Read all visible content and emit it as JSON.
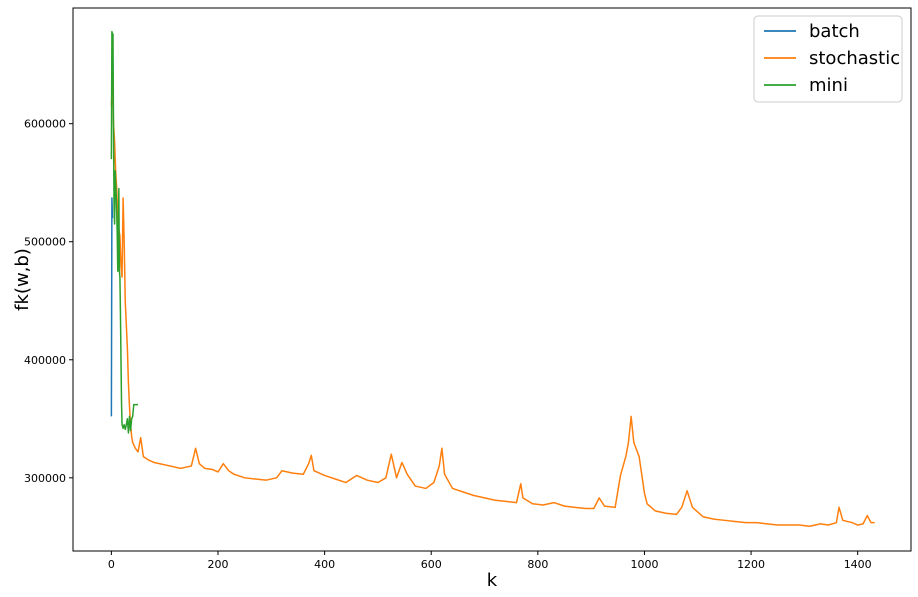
{
  "chart_data": {
    "type": "line",
    "title": "",
    "xlabel": "k",
    "ylabel": "fk(w,b)",
    "xlim": [
      -72,
      1500
    ],
    "ylim": [
      238000,
      698000
    ],
    "xticks": [
      0,
      200,
      400,
      600,
      800,
      1000,
      1200,
      1400
    ],
    "yticks": [
      300000,
      400000,
      500000,
      600000
    ],
    "xtick_labels": [
      "0",
      "200",
      "400",
      "600",
      "800",
      "1000",
      "1200",
      "1400"
    ],
    "ytick_labels": [
      "300000",
      "400000",
      "500000",
      "600000"
    ],
    "grid": false,
    "legend_position": "top-right",
    "series": [
      {
        "name": "batch",
        "color": "#1f77b4",
        "points": [
          [
            0,
            352000
          ],
          [
            1,
            537000
          ],
          [
            2,
            520000
          ]
        ]
      },
      {
        "name": "stochastic",
        "color": "#ff7f0e",
        "points": [
          [
            0,
            615000
          ],
          [
            2,
            638000
          ],
          [
            4,
            600000
          ],
          [
            6,
            585000
          ],
          [
            8,
            560000
          ],
          [
            10,
            545000
          ],
          [
            12,
            520000
          ],
          [
            14,
            510000
          ],
          [
            16,
            505000
          ],
          [
            18,
            480000
          ],
          [
            20,
            470000
          ],
          [
            22,
            537000
          ],
          [
            24,
            500000
          ],
          [
            26,
            450000
          ],
          [
            28,
            430000
          ],
          [
            30,
            410000
          ],
          [
            32,
            380000
          ],
          [
            34,
            360000
          ],
          [
            36,
            345000
          ],
          [
            38,
            335000
          ],
          [
            40,
            330000
          ],
          [
            45,
            325000
          ],
          [
            50,
            322000
          ],
          [
            55,
            334000
          ],
          [
            60,
            318000
          ],
          [
            70,
            315000
          ],
          [
            80,
            313000
          ],
          [
            90,
            312000
          ],
          [
            100,
            311000
          ],
          [
            110,
            310000
          ],
          [
            120,
            309000
          ],
          [
            130,
            308000
          ],
          [
            140,
            309000
          ],
          [
            150,
            310000
          ],
          [
            158,
            325000
          ],
          [
            165,
            312000
          ],
          [
            175,
            308000
          ],
          [
            190,
            307000
          ],
          [
            200,
            305000
          ],
          [
            210,
            312000
          ],
          [
            220,
            306000
          ],
          [
            230,
            303000
          ],
          [
            250,
            300000
          ],
          [
            270,
            299000
          ],
          [
            290,
            298000
          ],
          [
            310,
            300000
          ],
          [
            320,
            306000
          ],
          [
            340,
            304000
          ],
          [
            360,
            303000
          ],
          [
            370,
            312000
          ],
          [
            375,
            319000
          ],
          [
            380,
            306000
          ],
          [
            400,
            302000
          ],
          [
            420,
            299000
          ],
          [
            440,
            296000
          ],
          [
            460,
            302000
          ],
          [
            480,
            298000
          ],
          [
            500,
            296000
          ],
          [
            515,
            300000
          ],
          [
            525,
            320000
          ],
          [
            535,
            300000
          ],
          [
            545,
            313000
          ],
          [
            555,
            303000
          ],
          [
            570,
            293000
          ],
          [
            590,
            291000
          ],
          [
            605,
            296000
          ],
          [
            615,
            310000
          ],
          [
            620,
            325000
          ],
          [
            625,
            303000
          ],
          [
            640,
            291000
          ],
          [
            660,
            288000
          ],
          [
            680,
            285000
          ],
          [
            700,
            283000
          ],
          [
            720,
            281000
          ],
          [
            740,
            280000
          ],
          [
            760,
            279000
          ],
          [
            768,
            295000
          ],
          [
            772,
            283000
          ],
          [
            790,
            278000
          ],
          [
            810,
            277000
          ],
          [
            830,
            279000
          ],
          [
            850,
            276000
          ],
          [
            870,
            275000
          ],
          [
            890,
            274000
          ],
          [
            905,
            274000
          ],
          [
            915,
            283000
          ],
          [
            925,
            276000
          ],
          [
            945,
            275000
          ],
          [
            955,
            302000
          ],
          [
            965,
            318000
          ],
          [
            970,
            330000
          ],
          [
            975,
            352000
          ],
          [
            980,
            330000
          ],
          [
            990,
            318000
          ],
          [
            1000,
            287000
          ],
          [
            1005,
            278000
          ],
          [
            1020,
            272000
          ],
          [
            1040,
            270000
          ],
          [
            1060,
            269000
          ],
          [
            1070,
            275000
          ],
          [
            1080,
            289000
          ],
          [
            1090,
            275000
          ],
          [
            1110,
            267000
          ],
          [
            1130,
            265000
          ],
          [
            1150,
            264000
          ],
          [
            1170,
            263000
          ],
          [
            1190,
            262000
          ],
          [
            1210,
            262000
          ],
          [
            1230,
            261000
          ],
          [
            1250,
            260000
          ],
          [
            1270,
            260000
          ],
          [
            1290,
            260000
          ],
          [
            1310,
            259000
          ],
          [
            1330,
            261000
          ],
          [
            1345,
            260000
          ],
          [
            1360,
            262000
          ],
          [
            1365,
            275000
          ],
          [
            1372,
            264000
          ],
          [
            1390,
            262000
          ],
          [
            1400,
            260000
          ],
          [
            1410,
            261000
          ],
          [
            1418,
            268000
          ],
          [
            1425,
            262000
          ],
          [
            1432,
            262000
          ]
        ]
      },
      {
        "name": "mini",
        "color": "#2ca02c",
        "points": [
          [
            0,
            570000
          ],
          [
            1,
            678000
          ],
          [
            2,
            676000
          ],
          [
            3,
            676000
          ],
          [
            4,
            595000
          ],
          [
            5,
            530000
          ],
          [
            6,
            515000
          ],
          [
            7,
            560000
          ],
          [
            8,
            550000
          ],
          [
            9,
            540000
          ],
          [
            10,
            525000
          ],
          [
            11,
            505000
          ],
          [
            12,
            475000
          ],
          [
            13,
            500000
          ],
          [
            14,
            545000
          ],
          [
            15,
            475000
          ],
          [
            16,
            470000
          ],
          [
            17,
            440000
          ],
          [
            18,
            400000
          ],
          [
            19,
            365000
          ],
          [
            20,
            345000
          ],
          [
            22,
            342000
          ],
          [
            24,
            345000
          ],
          [
            26,
            341000
          ],
          [
            28,
            345000
          ],
          [
            30,
            350000
          ],
          [
            32,
            338000
          ],
          [
            34,
            352000
          ],
          [
            36,
            340000
          ],
          [
            38,
            350000
          ],
          [
            40,
            352000
          ],
          [
            42,
            362000
          ],
          [
            45,
            362000
          ],
          [
            48,
            362000
          ],
          [
            50,
            362000
          ]
        ]
      }
    ]
  }
}
